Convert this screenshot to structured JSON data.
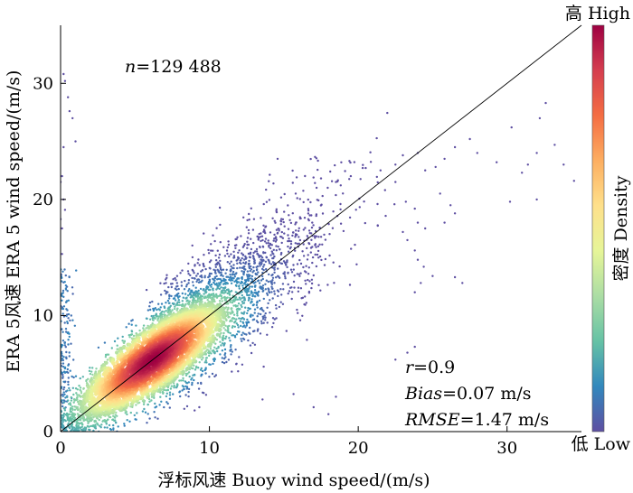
{
  "chart_data": {
    "type": "scatter",
    "subtype": "density-scatter",
    "title": "",
    "xlabel": "浮标风速 Buoy wind speed/(m/s)",
    "ylabel": "ERA 5风速 ERA 5 wind speed/(m/s)",
    "xlim": [
      0,
      35
    ],
    "ylim": [
      0,
      35
    ],
    "xticks": [
      0,
      10,
      20,
      30
    ],
    "yticks": [
      0,
      10,
      20,
      30
    ],
    "x_tick_labels": [
      "0",
      "10",
      "20",
      "30"
    ],
    "y_tick_labels": [
      "0",
      "10",
      "20",
      "30"
    ],
    "reference_line": {
      "name": "1:1 line",
      "from": [
        0,
        0
      ],
      "to": [
        35,
        35
      ]
    },
    "density_core": {
      "center_x": 6.2,
      "center_y": 6.2
    },
    "sample_count_prefix": "n",
    "sample_count_text": "=129 488",
    "stats": [
      {
        "label": "r",
        "value": "=0.9"
      },
      {
        "label": "Bias",
        "value": "=0.07 m/s"
      },
      {
        "label": "RMSE",
        "value": "=1.47 m/s"
      }
    ],
    "colorbar": {
      "label": "密度 Density",
      "high_label": "高 High",
      "low_label": "低 Low",
      "colors": [
        "#5e4fa2",
        "#3288bd",
        "#66c2a5",
        "#abdda4",
        "#e6f598",
        "#fee08b",
        "#fdae61",
        "#f46d43",
        "#d53e4f",
        "#9e0142"
      ]
    },
    "sparse_points": [
      [
        0.2,
        30.8
      ],
      [
        0.3,
        30.2
      ],
      [
        0.5,
        28.8
      ],
      [
        0.6,
        27.6
      ],
      [
        0.8,
        27.0
      ],
      [
        1.0,
        25.0
      ],
      [
        0.2,
        24.5
      ],
      [
        0.1,
        22.0
      ],
      [
        0.0,
        21.5
      ],
      [
        0.2,
        20.0
      ],
      [
        0.3,
        19.1
      ],
      [
        0.0,
        18.3
      ],
      [
        0.1,
        17.5
      ],
      [
        0.1,
        15.3
      ],
      [
        13.0,
        18.3
      ],
      [
        14.5,
        19.0
      ],
      [
        15.8,
        20.5
      ],
      [
        17.2,
        21.0
      ],
      [
        18.5,
        21.5
      ],
      [
        19.5,
        22.0
      ],
      [
        20.5,
        22.7
      ],
      [
        21.5,
        22.5
      ],
      [
        22.5,
        23.0
      ],
      [
        23.0,
        23.8
      ],
      [
        24.0,
        24.0
      ],
      [
        24.5,
        22.5
      ],
      [
        25.2,
        22.8
      ],
      [
        25.8,
        23.5
      ],
      [
        26.5,
        24.5
      ],
      [
        27.5,
        25.2
      ],
      [
        28.0,
        24.0
      ],
      [
        21.3,
        19.6
      ],
      [
        21.8,
        20.8
      ],
      [
        22.5,
        21.5
      ],
      [
        23.2,
        19.8
      ],
      [
        23.8,
        19.2
      ],
      [
        25.5,
        20.5
      ],
      [
        26.2,
        19.5
      ],
      [
        26.5,
        18.8
      ],
      [
        25.8,
        18.0
      ],
      [
        24.0,
        18.0
      ],
      [
        23.0,
        17.2
      ],
      [
        24.5,
        17.5
      ],
      [
        23.3,
        16.5
      ],
      [
        23.8,
        15.6
      ],
      [
        24.0,
        14.8
      ],
      [
        24.4,
        14.2
      ],
      [
        25.0,
        13.4
      ],
      [
        24.2,
        12.8
      ],
      [
        23.8,
        12.0
      ],
      [
        26.5,
        13.3
      ],
      [
        27.0,
        12.8
      ],
      [
        29.3,
        23.2
      ],
      [
        30.3,
        26.2
      ],
      [
        31.0,
        22.3
      ],
      [
        31.4,
        23.0
      ],
      [
        32.0,
        24.0
      ],
      [
        32.2,
        27.0
      ],
      [
        32.6,
        28.3
      ],
      [
        33.2,
        24.7
      ],
      [
        33.8,
        23.0
      ],
      [
        34.5,
        21.6
      ],
      [
        32.0,
        20.0
      ],
      [
        30.2,
        19.8
      ],
      [
        23.8,
        7.3
      ],
      [
        23.3,
        6.8
      ],
      [
        22.5,
        6.2
      ],
      [
        18.0,
        1.5
      ],
      [
        18.5,
        3.0
      ],
      [
        17.0,
        2.1
      ]
    ]
  }
}
